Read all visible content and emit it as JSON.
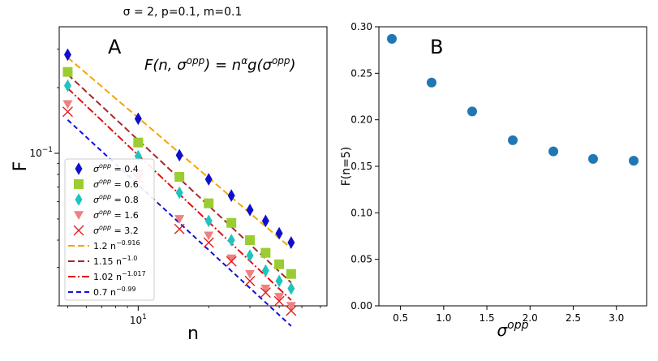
{
  "suptitle": "σ = 2, p=0.1, m=0.1",
  "chart_data": [
    {
      "panel": "A",
      "type": "scatter",
      "xscale": "log",
      "yscale": "log",
      "xlabel": "n",
      "ylabel": "F",
      "xlim": [
        4.6,
        64
      ],
      "ylim": [
        0.02,
        0.38
      ],
      "x_ticks": [
        {
          "value": 10,
          "base": "10",
          "exp": "1"
        }
      ],
      "y_ticks": [
        {
          "value": 0.1,
          "base": "10",
          "exp": "−1"
        }
      ],
      "formula": {
        "prefix": "F(n, σ",
        "sup1": "opp",
        "mid": ") = n",
        "sup2": "α",
        "mid2": "g(σ",
        "sup3": "opp",
        "suffix": ")"
      },
      "legend_position": "lower-left",
      "x": [
        5,
        10,
        15,
        20,
        25,
        30,
        35,
        40,
        45
      ],
      "series": [
        {
          "name_prefix": "σ",
          "name_sup": "opp",
          "name_suffix": " = 0.4",
          "color": "#1010cc",
          "marker": "diamond",
          "values": [
            0.283,
            0.144,
            0.098,
            0.076,
            0.064,
            0.055,
            0.049,
            0.043,
            0.039
          ]
        },
        {
          "name_prefix": "σ",
          "name_sup": "opp",
          "name_suffix": " = 0.6",
          "color": "#9acd32",
          "marker": "square",
          "values": [
            0.236,
            0.112,
            0.078,
            0.059,
            0.048,
            0.04,
            0.035,
            0.031,
            0.028
          ]
        },
        {
          "name_prefix": "σ",
          "name_sup": "opp",
          "name_suffix": " = 0.8",
          "color": "#1fc3bf",
          "marker": "diamond",
          "values": [
            0.204,
            0.097,
            0.066,
            0.049,
            0.04,
            0.034,
            0.029,
            0.026,
            0.024
          ]
        },
        {
          "name_prefix": "σ",
          "name_sup": "opp",
          "name_suffix": " = 1.6",
          "color": "#f08080",
          "marker": "triangle_down",
          "values": [
            0.168,
            0.081,
            0.05,
            0.042,
            0.033,
            0.028,
            0.024,
            0.022,
            0.02
          ]
        },
        {
          "name_prefix": "σ",
          "name_sup": "opp",
          "name_suffix": " = 3.2",
          "color": "#e02020",
          "marker": "x",
          "values": [
            0.155,
            0.077,
            0.045,
            0.039,
            0.032,
            0.026,
            0.023,
            0.021,
            0.019
          ]
        }
      ],
      "fits": [
        {
          "coef": 1.2,
          "exp": -0.916,
          "label_prefix": "1.2 n",
          "label_sup": "−0.916",
          "color": "#f5a500",
          "dash": "8,4"
        },
        {
          "coef": 1.15,
          "exp": -1.0,
          "label_prefix": "1.15 n",
          "label_sup": "−1.0",
          "color": "#a52a2a",
          "dash": "8,4"
        },
        {
          "coef": 1.02,
          "exp": -1.017,
          "label_prefix": "1.02 n",
          "label_sup": "−1.017",
          "color": "#e01010",
          "dash": "9,3,2,3"
        },
        {
          "coef": 0.7,
          "exp": -0.99,
          "label_prefix": "0.7 n",
          "label_sup": "−0.99",
          "color": "#1010dd",
          "dash": "6,4"
        }
      ]
    },
    {
      "panel": "B",
      "type": "scatter",
      "xlabel_base": "σ",
      "xlabel_sup": "opp",
      "ylabel": "F(n=5)",
      "xlim": [
        0.25,
        3.35
      ],
      "ylim": [
        0.0,
        0.3
      ],
      "x_ticks": [
        "0.5",
        "1.0",
        "1.5",
        "2.0",
        "2.5",
        "3.0"
      ],
      "y_ticks": [
        "0.00",
        "0.05",
        "0.10",
        "0.15",
        "0.20",
        "0.25",
        "0.30"
      ],
      "color": "#1f77b4",
      "x": [
        0.4,
        0.86,
        1.33,
        1.8,
        2.27,
        2.73,
        3.2
      ],
      "y": [
        0.287,
        0.24,
        0.209,
        0.178,
        0.166,
        0.158,
        0.156
      ]
    }
  ]
}
